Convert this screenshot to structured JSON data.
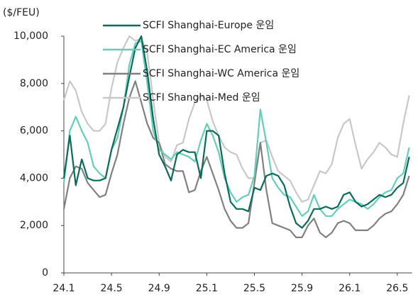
{
  "chart_data": {
    "type": "line",
    "y_axis_label": "($/FEU)",
    "categories": [
      "24.1",
      null,
      null,
      null,
      null,
      null,
      null,
      null,
      "24.5",
      null,
      null,
      null,
      null,
      null,
      null,
      null,
      "24.9",
      null,
      null,
      null,
      null,
      null,
      null,
      null,
      "25.1",
      null,
      null,
      null,
      null,
      null,
      null,
      null,
      "25.5",
      null,
      null,
      null,
      null,
      null,
      null,
      null,
      "25.9",
      null,
      null,
      null,
      null,
      null,
      null,
      null,
      "26.1",
      null,
      null,
      null,
      null,
      null,
      null,
      null,
      "26.5",
      null,
      null
    ],
    "ylim": [
      0,
      10000
    ],
    "yticks": [
      0,
      {
        "value": 2000,
        "label": "2,000"
      },
      {
        "value": 4000,
        "label": "4,000"
      },
      {
        "value": 6000,
        "label": "6,000"
      },
      {
        "value": 8000,
        "label": "8,000"
      },
      {
        "value": 10000,
        "label": "10,000"
      }
    ],
    "grid": false,
    "legend": "top",
    "series": [
      {
        "name": "SCFI Shanghai-Europe 운임",
        "color": "#0b6b58",
        "values": [
          4000,
          5800,
          3700,
          4800,
          4000,
          3900,
          3900,
          4000,
          5200,
          6100,
          7000,
          8300,
          9500,
          10000,
          8500,
          6500,
          5000,
          4500,
          3900,
          5000,
          5200,
          5100,
          5100,
          4000,
          6000,
          6000,
          5800,
          4200,
          3000,
          2700,
          2700,
          2600,
          3600,
          3500,
          4100,
          4200,
          4100,
          3700,
          2800,
          2100,
          1900,
          2200,
          2700,
          2700,
          2800,
          2700,
          2800,
          3300,
          3400,
          3000,
          2800,
          2900,
          3100,
          3300,
          3200,
          3300,
          3600,
          3800,
          4900
        ]
      },
      {
        "name": "SCFI Shanghai-EC America 운임",
        "color": "#66cdb8",
        "values": [
          3800,
          6000,
          6600,
          6000,
          5500,
          4500,
          4200,
          4000,
          5200,
          5700,
          7000,
          8800,
          9700,
          9800,
          8000,
          6000,
          5200,
          5000,
          4800,
          5100,
          5000,
          4900,
          4700,
          5600,
          6300,
          5800,
          5100,
          4000,
          3400,
          3000,
          3200,
          3300,
          4100,
          6900,
          5500,
          4000,
          3600,
          3300,
          3200,
          2800,
          2400,
          2600,
          3300,
          2700,
          2400,
          2400,
          2700,
          2900,
          3100,
          3000,
          2900,
          2700,
          2900,
          3200,
          3400,
          3500,
          4000,
          4200,
          5300
        ]
      },
      {
        "name": "SCFI Shanghai-WC America 운임",
        "color": "#808080",
        "values": [
          2700,
          4000,
          4500,
          4400,
          3800,
          3500,
          3200,
          3300,
          4200,
          5000,
          6300,
          7400,
          8100,
          7200,
          6300,
          5700,
          5500,
          4600,
          4400,
          4300,
          4300,
          3400,
          3500,
          4300,
          4900,
          4200,
          3500,
          2700,
          2200,
          1900,
          1900,
          2100,
          3800,
          5500,
          3500,
          2100,
          2000,
          1900,
          1800,
          1500,
          1500,
          2000,
          2300,
          1700,
          1500,
          1700,
          2100,
          2200,
          2100,
          1800,
          1800,
          1800,
          2000,
          2300,
          2500,
          2600,
          2900,
          3300,
          4100
        ]
      },
      {
        "name": "SCFI Shanghai-Med 운임",
        "color": "#c8c8c8",
        "values": [
          7300,
          8100,
          7700,
          6800,
          6300,
          6000,
          6000,
          6300,
          7800,
          8900,
          9500,
          10000,
          9800,
          9900,
          9300,
          7300,
          5500,
          4900,
          4700,
          5400,
          5500,
          6500,
          7200,
          7500,
          7300,
          6400,
          5800,
          5300,
          5100,
          5000,
          4400,
          4000,
          4000,
          5500,
          5600,
          4900,
          4300,
          4100,
          3900,
          3400,
          3000,
          3100,
          3700,
          4300,
          4200,
          4600,
          5700,
          6300,
          6500,
          5400,
          4400,
          4800,
          5100,
          5500,
          5300,
          5000,
          4900,
          6300,
          7500
        ]
      }
    ]
  }
}
